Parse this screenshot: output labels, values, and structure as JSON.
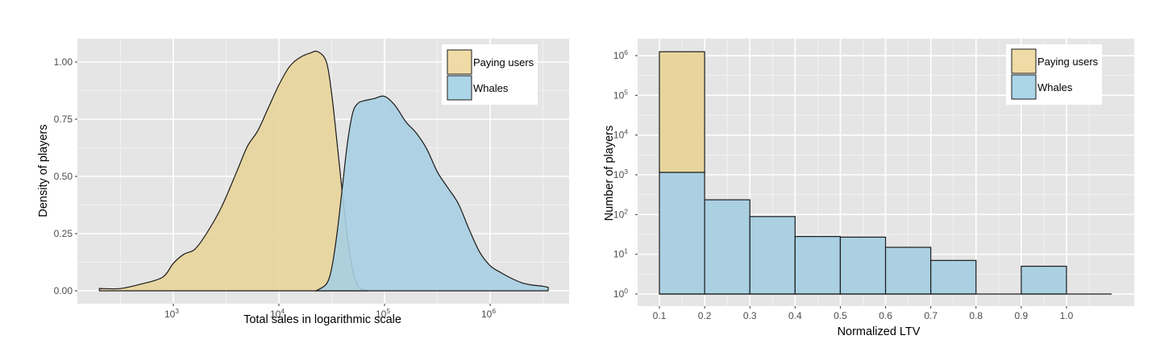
{
  "colors": {
    "panel_bg": "#e5e5e5",
    "grid_major": "#ffffff",
    "grid_minor": "#f2f2f2",
    "paying_users": "#e8d49a",
    "whales": "#a7cfe2",
    "overlap": "#a8c5ae",
    "outline": "#1a1a1a"
  },
  "chart_data": [
    {
      "type": "area",
      "subtype": "density",
      "title": "",
      "xlabel": "Total sales in logarithmic scale",
      "ylabel": "Density of players",
      "x_scale": "log10",
      "x_ticks": [
        {
          "value": 3,
          "label_base": "10",
          "label_exp": "3"
        },
        {
          "value": 4,
          "label_base": "10",
          "label_exp": "4"
        },
        {
          "value": 5,
          "label_base": "10",
          "label_exp": "5"
        },
        {
          "value": 6,
          "label_base": "10",
          "label_exp": "6"
        }
      ],
      "y_ticks": [
        "0.00",
        "0.25",
        "0.50",
        "0.75",
        "1.00"
      ],
      "xlim_log10": [
        2.1,
        6.7
      ],
      "ylim": [
        -0.05,
        1.1
      ],
      "grid": true,
      "legend": {
        "position": "top-right",
        "entries": [
          "Paying users",
          "Whales"
        ]
      },
      "series": [
        {
          "name": "Paying users",
          "x_log10": [
            2.3,
            2.5,
            2.7,
            2.9,
            3.0,
            3.1,
            3.2,
            3.3,
            3.45,
            3.6,
            3.7,
            3.8,
            3.9,
            4.0,
            4.1,
            4.2,
            4.3,
            4.37,
            4.45,
            4.5,
            4.55,
            4.6,
            4.65,
            4.7,
            4.75,
            4.8,
            4.85
          ],
          "density": [
            0.01,
            0.01,
            0.03,
            0.06,
            0.12,
            0.16,
            0.18,
            0.24,
            0.36,
            0.52,
            0.63,
            0.7,
            0.8,
            0.9,
            0.98,
            1.02,
            1.04,
            1.045,
            1.0,
            0.86,
            0.65,
            0.43,
            0.23,
            0.09,
            0.02,
            0.005,
            0.0
          ]
        },
        {
          "name": "Whales",
          "x_log10": [
            4.35,
            4.45,
            4.5,
            4.55,
            4.6,
            4.65,
            4.7,
            4.75,
            4.8,
            4.9,
            5.0,
            5.1,
            5.2,
            5.3,
            5.4,
            5.5,
            5.6,
            5.7,
            5.8,
            5.9,
            6.0,
            6.1,
            6.2,
            6.3,
            6.4,
            6.5,
            6.55
          ],
          "density": [
            0.0,
            0.03,
            0.1,
            0.25,
            0.45,
            0.65,
            0.78,
            0.82,
            0.83,
            0.84,
            0.85,
            0.81,
            0.74,
            0.69,
            0.62,
            0.52,
            0.45,
            0.38,
            0.27,
            0.17,
            0.11,
            0.08,
            0.055,
            0.035,
            0.025,
            0.02,
            0.015
          ]
        }
      ]
    },
    {
      "type": "bar",
      "subtype": "histogram",
      "title": "",
      "xlabel": "Normalized LTV",
      "ylabel": "Number of players",
      "y_scale": "log10",
      "x_ticks": [
        "0.1",
        "0.2",
        "0.3",
        "0.4",
        "0.5",
        "0.6",
        "0.7",
        "0.8",
        "0.9",
        "1.0"
      ],
      "y_ticks": [
        {
          "value": 0,
          "label_base": "10",
          "label_exp": "0"
        },
        {
          "value": 1,
          "label_base": "10",
          "label_exp": "1"
        },
        {
          "value": 2,
          "label_base": "10",
          "label_exp": "2"
        },
        {
          "value": 3,
          "label_base": "10",
          "label_exp": "3"
        },
        {
          "value": 4,
          "label_base": "10",
          "label_exp": "4"
        },
        {
          "value": 5,
          "label_base": "10",
          "label_exp": "5"
        },
        {
          "value": 6,
          "label_base": "10",
          "label_exp": "6"
        }
      ],
      "xlim": [
        0.03,
        1.13
      ],
      "ylim_log10": [
        -0.1,
        6.4
      ],
      "grid": true,
      "legend": {
        "position": "top-right",
        "entries": [
          "Paying users",
          "Whales"
        ]
      },
      "categories": [
        "0.1-0.2",
        "0.2-0.3",
        "0.3-0.4",
        "0.4-0.5",
        "0.5-0.6",
        "0.6-0.7",
        "0.7-0.8",
        "0.8-0.9",
        "0.9-1.0",
        "1.0-1.1"
      ],
      "bin_edges": [
        0.1,
        0.2,
        0.3,
        0.4,
        0.5,
        0.6,
        0.7,
        0.8,
        0.9,
        1.0,
        1.1
      ],
      "series": [
        {
          "name": "Paying users",
          "values": [
            1250000,
            1,
            1,
            1,
            1,
            1,
            1,
            1,
            1,
            1
          ]
        },
        {
          "name": "Whales",
          "values": [
            1150,
            235,
            89,
            28,
            27,
            15,
            7,
            1,
            5,
            1
          ]
        }
      ]
    }
  ],
  "left_chart": {
    "ylabel": "Density of players",
    "xlabel": "Total sales in logarithmic scale",
    "legend": {
      "paying": "Paying users",
      "whales": "Whales"
    }
  },
  "right_chart": {
    "ylabel": "Number of players",
    "xlabel": "Normalized LTV",
    "legend": {
      "paying": "Paying users",
      "whales": "Whales"
    }
  }
}
